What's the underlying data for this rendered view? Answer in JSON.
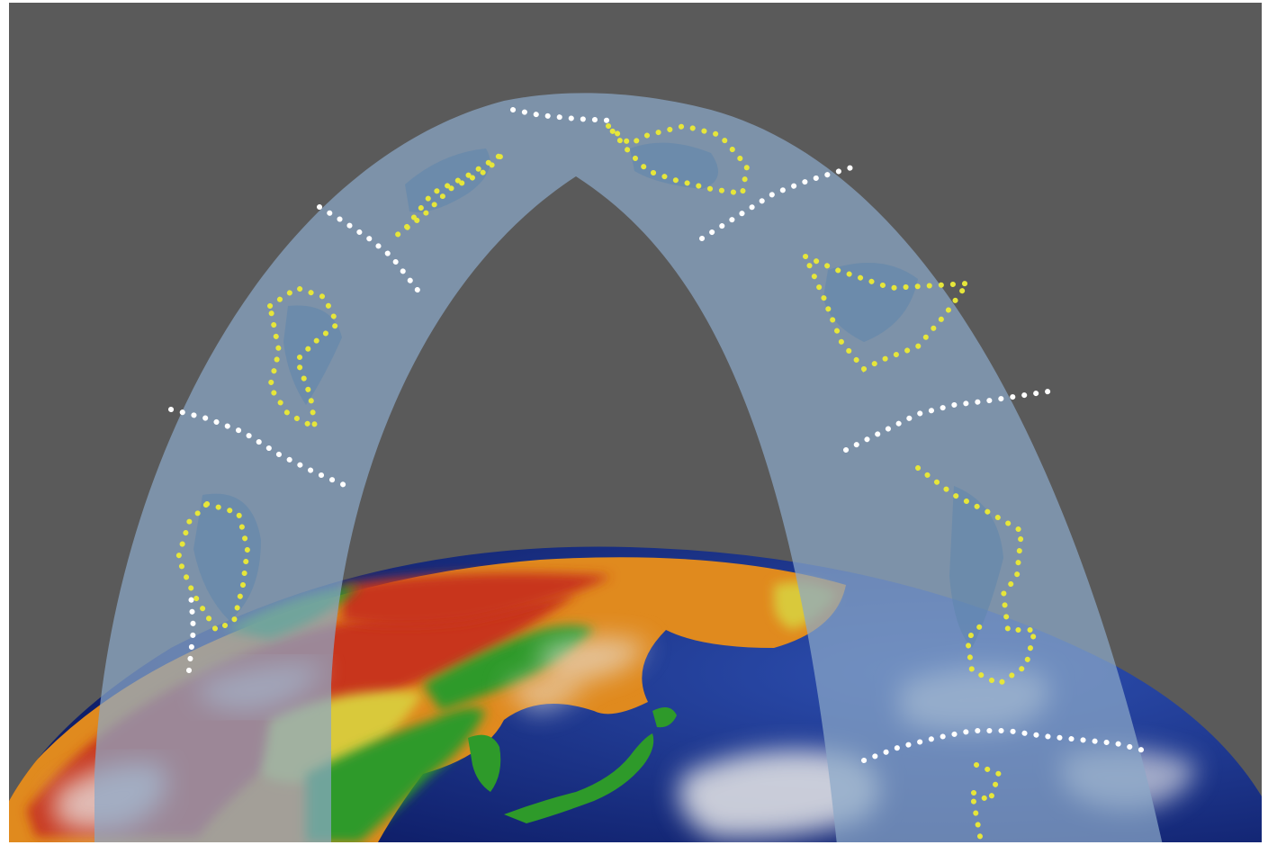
{
  "colors": {
    "frame": "#ffffff",
    "background": "#5a5a5a",
    "band": "#8aa7c8",
    "constellation_line": "#e6e63a",
    "star": "#ffffff",
    "ocean": "#1a2f8c",
    "land_red": "#c8341c",
    "land_orange": "#e08a1e",
    "land_yellow": "#d9c93a",
    "land_green": "#2e9a2a",
    "cloud": "#e8e8e8",
    "figure": "#5f86ad"
  },
  "scene": {
    "background": "plain-gray",
    "earth": "globe-view-east-asia",
    "band": "zodiac-arch",
    "constellation_count": 8
  }
}
